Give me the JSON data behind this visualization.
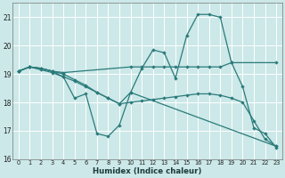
{
  "xlabel": "Humidex (Indice chaleur)",
  "bg_color": "#cce8e8",
  "line_color": "#2a7a7a",
  "grid_color": "#ffffff",
  "xlim": [
    -0.5,
    23.5
  ],
  "ylim": [
    16.0,
    21.5
  ],
  "yticks": [
    16,
    17,
    18,
    19,
    20,
    21
  ],
  "xticks": [
    0,
    1,
    2,
    3,
    4,
    5,
    6,
    7,
    8,
    9,
    10,
    11,
    12,
    13,
    14,
    15,
    16,
    17,
    18,
    19,
    20,
    21,
    22,
    23
  ],
  "line1_x": [
    0,
    1,
    2,
    3,
    4,
    5,
    6,
    7,
    8,
    9,
    10,
    11,
    12,
    13,
    14,
    15,
    16,
    17,
    18,
    19,
    20,
    21,
    22,
    23
  ],
  "line1_y": [
    19.1,
    19.25,
    19.2,
    19.1,
    18.9,
    18.15,
    18.3,
    16.9,
    16.8,
    17.2,
    18.35,
    19.2,
    19.85,
    19.75,
    18.85,
    20.35,
    21.1,
    21.1,
    21.0,
    19.4,
    18.55,
    17.1,
    16.9,
    16.4
  ],
  "line2_x": [
    0,
    1,
    2,
    3,
    4,
    10,
    11,
    12,
    13,
    14,
    15,
    16,
    17,
    18,
    19,
    23
  ],
  "line2_y": [
    19.1,
    19.25,
    19.2,
    19.1,
    19.05,
    19.25,
    19.25,
    19.25,
    19.25,
    19.25,
    19.25,
    19.25,
    19.25,
    19.25,
    19.4,
    19.4
  ],
  "line3_x": [
    0,
    1,
    2,
    3,
    4,
    5,
    6,
    7,
    8,
    9,
    10,
    23
  ],
  "line3_y": [
    19.1,
    19.25,
    19.2,
    19.1,
    19.0,
    18.8,
    18.6,
    18.35,
    18.15,
    17.95,
    18.35,
    16.45
  ],
  "line4_x": [
    0,
    1,
    2,
    3,
    4,
    5,
    6,
    7,
    8,
    9,
    10,
    11,
    12,
    13,
    14,
    15,
    16,
    17,
    18,
    19,
    20,
    21,
    22,
    23
  ],
  "line4_y": [
    19.1,
    19.25,
    19.15,
    19.05,
    18.9,
    18.75,
    18.55,
    18.35,
    18.15,
    17.95,
    18.0,
    18.05,
    18.1,
    18.15,
    18.2,
    18.25,
    18.3,
    18.3,
    18.25,
    18.15,
    18.0,
    17.35,
    16.7,
    16.45
  ]
}
